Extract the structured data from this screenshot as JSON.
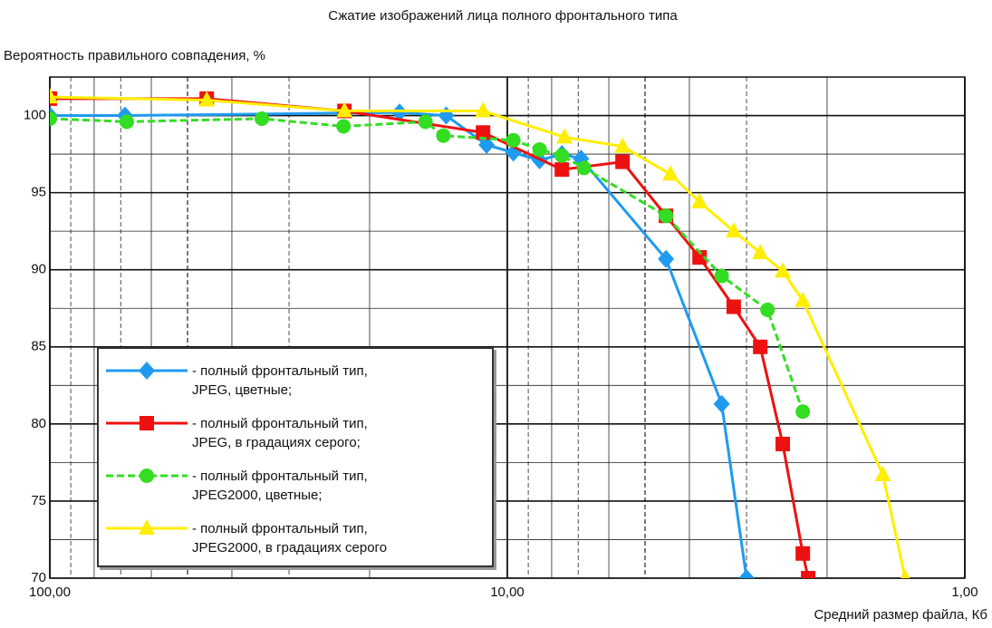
{
  "chart_data": {
    "type": "line",
    "title": "Сжатие изображений лица полного фронтального типа",
    "y_label": "Вероятность правильного совпадения, %",
    "x_label": "Средний размер файла, Кб",
    "x_scale": "log",
    "x_reversed": true,
    "xlim": [
      100,
      1
    ],
    "xticks": [
      {
        "value": 100,
        "label": "100,00"
      },
      {
        "value": 10,
        "label": "10,00"
      },
      {
        "value": 1,
        "label": "1,00"
      }
    ],
    "ylim": [
      70,
      102.5
    ],
    "yticks": [
      70,
      75,
      80,
      85,
      90,
      95,
      100
    ],
    "grid": true,
    "legend": "lower left",
    "series": [
      {
        "name": "- полный фронтальный тип,\nJPEG, цветные;",
        "color": "#1e9bef",
        "marker": "diamond",
        "line_style": "solid",
        "x": [
          100,
          68.5,
          17.2,
          13.6,
          11.1,
          9.7,
          8.5,
          7.6,
          6.9,
          4.5,
          3.4,
          3.0
        ],
        "values": [
          100.0,
          100.0,
          100.2,
          100.0,
          98.1,
          97.6,
          97.1,
          97.5,
          97.2,
          90.7,
          81.3,
          70
        ]
      },
      {
        "name": "- полный фронтальный тип,\nJPEG, в градациях серого;",
        "color": "#ee1111",
        "marker": "square",
        "line_style": "solid",
        "x": [
          100,
          45.4,
          22.7,
          11.3,
          7.6,
          5.6,
          4.5,
          3.8,
          3.2,
          2.8,
          2.5,
          2.26,
          2.2
        ],
        "values": [
          101.1,
          101.1,
          100.3,
          98.9,
          96.5,
          97.0,
          93.5,
          90.8,
          87.6,
          85.0,
          78.7,
          71.6,
          70
        ]
      },
      {
        "name": "- полный фронтальный тип,\nJPEG2000, цветные;",
        "color": "#33dd22",
        "marker": "circle",
        "line_style": "dashed",
        "x": [
          100,
          67.9,
          34.4,
          22.8,
          15.1,
          13.8,
          9.7,
          8.5,
          7.6,
          6.8,
          4.5,
          3.4,
          2.7,
          2.26
        ],
        "values": [
          99.8,
          99.6,
          99.8,
          99.3,
          99.6,
          98.7,
          98.4,
          97.8,
          97.4,
          96.6,
          93.5,
          89.6,
          87.4,
          80.8
        ]
      },
      {
        "name": "- полный фронтальный тип,\nJPEG2000, в градациях серого",
        "color": "#ffee00",
        "marker": "triangle",
        "line_style": "solid",
        "x": [
          100,
          45.4,
          22.7,
          11.3,
          7.5,
          5.6,
          4.4,
          3.8,
          3.2,
          2.8,
          2.5,
          2.26,
          1.51,
          1.35
        ],
        "values": [
          101.2,
          101.0,
          100.3,
          100.3,
          98.6,
          98.0,
          96.2,
          94.4,
          92.5,
          91.1,
          89.9,
          88.0,
          76.7,
          70
        ]
      }
    ]
  }
}
